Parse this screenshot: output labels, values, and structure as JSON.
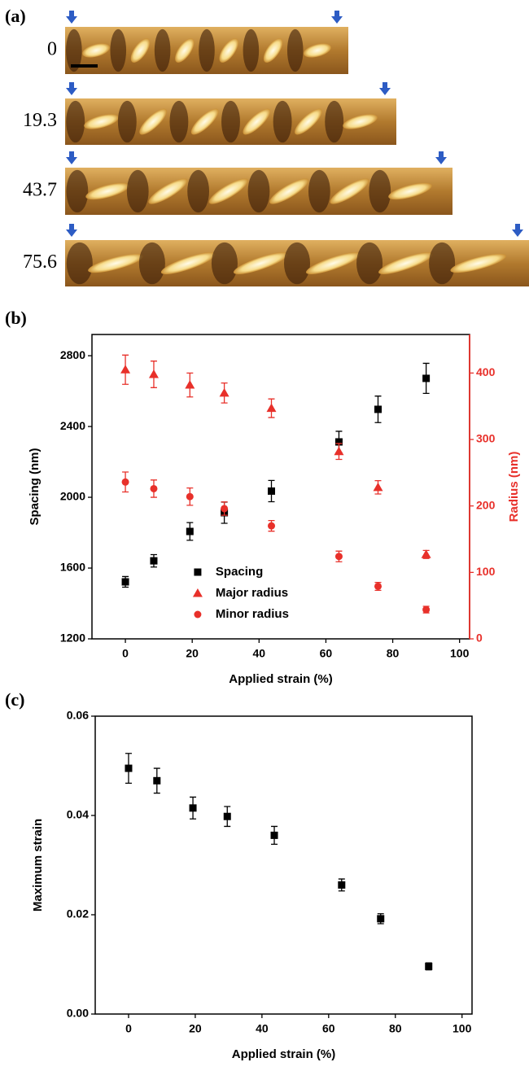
{
  "panel_a": {
    "label": "(a)",
    "strains": [
      0,
      19.3,
      43.7,
      75.6
    ]
  },
  "chart_data": [
    {
      "type": "scatter",
      "label": "(b)",
      "xlabel": "Applied strain (%)",
      "ylabel": "Spacing (nm)",
      "y2label": "Radius (nm)",
      "x": [
        0,
        8.5,
        19.3,
        29.6,
        43.7,
        63.9,
        75.6,
        90
      ],
      "xlim": [
        -10,
        103
      ],
      "xticks": [
        0,
        20,
        40,
        60,
        80,
        100
      ],
      "ylim": [
        1200,
        2920
      ],
      "yticks": [
        1200,
        1600,
        2000,
        2400,
        2800
      ],
      "y2lim": [
        0,
        458
      ],
      "y2ticks": [
        0,
        100,
        200,
        300,
        400
      ],
      "y2color": "#e8302a",
      "legend": "lower center",
      "series": [
        {
          "name": "Spacing",
          "color": "#000000",
          "marker": "square",
          "values": [
            1522,
            1641,
            1807,
            1913,
            2035,
            2313,
            2497,
            2672
          ],
          "errors": [
            30,
            35,
            50,
            60,
            60,
            60,
            75,
            85
          ]
        },
        {
          "name": "Major radius",
          "color": "#e8302a",
          "marker": "triangle",
          "axis": "y2",
          "values": [
            405,
            398,
            382,
            370,
            347,
            282,
            228,
            127
          ],
          "errors": [
            22,
            20,
            18,
            15,
            14,
            12,
            10,
            6
          ]
        },
        {
          "name": "Minor radius",
          "color": "#e8302a",
          "marker": "circle",
          "axis": "y2",
          "values": [
            236,
            226,
            214,
            196,
            170,
            124,
            79,
            44
          ],
          "errors": [
            15,
            13,
            13,
            10,
            8,
            8,
            6,
            5
          ]
        }
      ]
    },
    {
      "type": "scatter",
      "label": "(c)",
      "xlabel": "Applied strain (%)",
      "ylabel": "Maximum strain",
      "x": [
        0,
        8.5,
        19.3,
        29.6,
        43.7,
        63.9,
        75.6,
        90
      ],
      "xlim": [
        -10,
        103
      ],
      "xticks": [
        0,
        20,
        40,
        60,
        80,
        100
      ],
      "ylim": [
        0,
        0.06
      ],
      "yticks": [
        {
          "value": 0,
          "label": "0.00"
        },
        {
          "value": 0.02,
          "label": "0.02"
        },
        {
          "value": 0.04,
          "label": "0.04"
        },
        {
          "value": 0.06,
          "label": "0.06"
        }
      ],
      "series": [
        {
          "color": "#000000",
          "marker": "square",
          "values": [
            0.0495,
            0.047,
            0.0415,
            0.0398,
            0.036,
            0.026,
            0.0192,
            0.0096
          ],
          "errors": [
            0.003,
            0.0025,
            0.0022,
            0.002,
            0.0018,
            0.0012,
            0.001,
            0.0007
          ]
        }
      ]
    }
  ]
}
